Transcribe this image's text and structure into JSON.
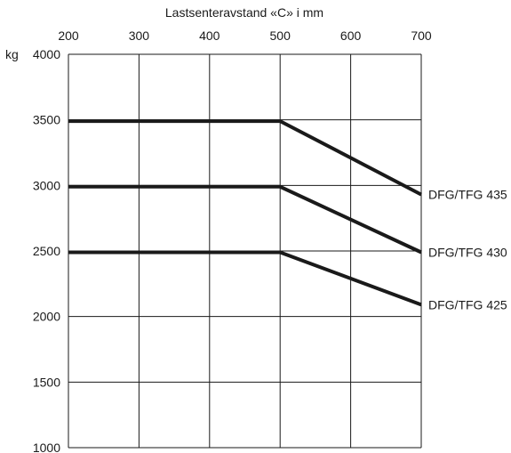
{
  "chart_data": {
    "type": "line",
    "xlabel": "Lastsenteravstand «C» i mm",
    "ylabel": "kg",
    "xlim": [
      200,
      700
    ],
    "ylim": [
      1000,
      4000
    ],
    "x_ticks": [
      "200",
      "300",
      "400",
      "500",
      "600",
      "700"
    ],
    "y_ticks": [
      "4000",
      "3500",
      "3000",
      "2500",
      "2000",
      "1500",
      "1000"
    ],
    "x_tick_values": [
      200,
      300,
      400,
      500,
      600,
      700
    ],
    "y_tick_values": [
      4000,
      3500,
      3000,
      2500,
      2000,
      1500,
      1000
    ],
    "grid": true,
    "series": [
      {
        "name": "DFG/TFG 435",
        "x": [
          200,
          500,
          700
        ],
        "y": [
          3490,
          3490,
          2930
        ]
      },
      {
        "name": "DFG/TFG 430",
        "x": [
          200,
          500,
          700
        ],
        "y": [
          2990,
          2990,
          2490
        ]
      },
      {
        "name": "DFG/TFG 425",
        "x": [
          200,
          500,
          700
        ],
        "y": [
          2490,
          2490,
          2090
        ]
      }
    ]
  }
}
